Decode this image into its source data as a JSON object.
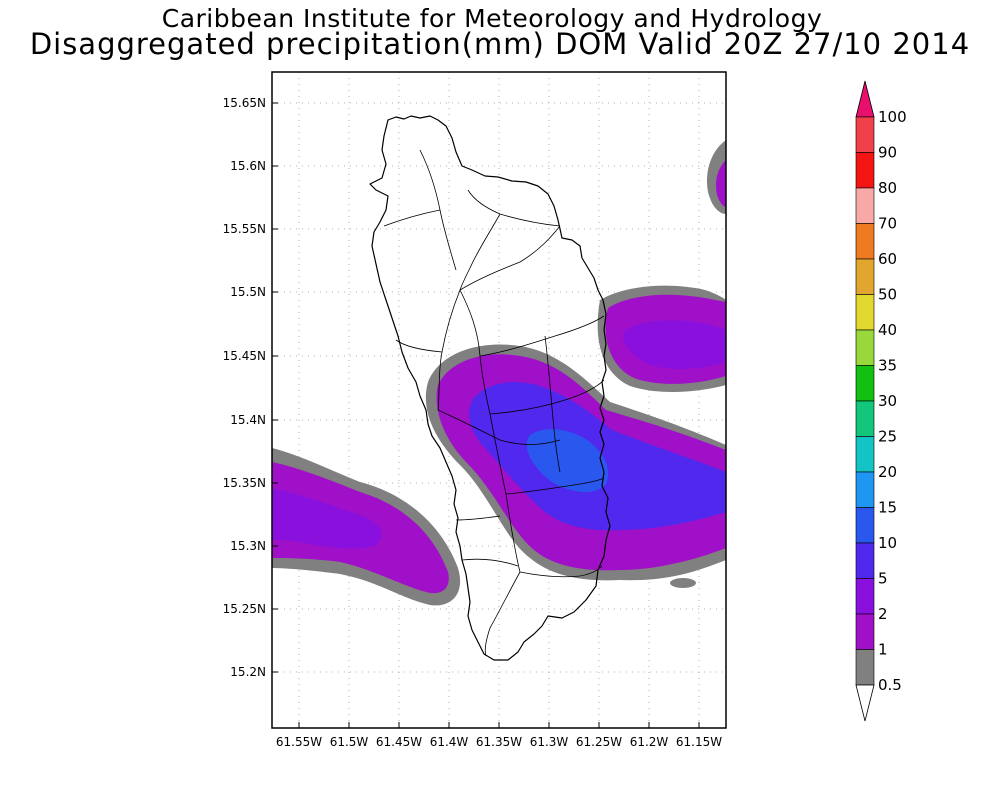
{
  "title": {
    "line1": "Caribbean Institute for Meteorology and Hydrology",
    "line2": "Disaggregated precipitation(mm) DOM Valid 20Z 27/10 2014"
  },
  "axes": {
    "y_ticks": [
      "15.65N",
      "15.6N",
      "15.55N",
      "15.5N",
      "15.45N",
      "15.4N",
      "15.35N",
      "15.3N",
      "15.25N",
      "15.2N"
    ],
    "x_ticks": [
      "61.55W",
      "61.5W",
      "61.45W",
      "61.4W",
      "61.35W",
      "61.3W",
      "61.25W",
      "61.2W",
      "61.15W"
    ],
    "grid": "dotted"
  },
  "colorbar": {
    "levels": [
      "100",
      "90",
      "80",
      "70",
      "60",
      "50",
      "40",
      "35",
      "30",
      "25",
      "20",
      "15",
      "10",
      "5",
      "2",
      "1",
      "0.5"
    ],
    "colors": [
      "#e8106e",
      "#f0404a",
      "#f51414",
      "#f9a8a8",
      "#ee7b22",
      "#e2a630",
      "#e2d830",
      "#98d83a",
      "#12c012",
      "#12c67c",
      "#14c4c4",
      "#1e96f2",
      "#2a58ee",
      "#5028ee",
      "#8a10de",
      "#a010c8",
      "#808080",
      "#ffffff"
    ]
  },
  "precip_colors": {
    "p0_5": "#808080",
    "p1": "#a010c8",
    "p2": "#8a10de",
    "p5": "#5028ee",
    "p10": "#2a58ee"
  }
}
